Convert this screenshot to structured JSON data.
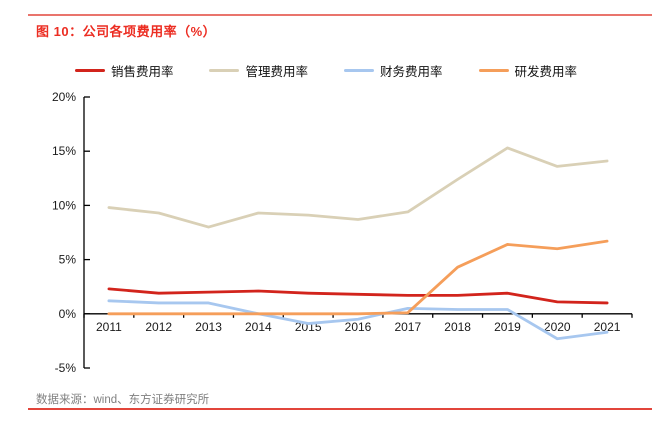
{
  "figure": {
    "title": "图 10：公司各项费用率（%）",
    "source": "数据来源：wind、东方证券研究所"
  },
  "colors": {
    "accent_rule": "#e2453b",
    "title_text": "#ec2d22",
    "axis": "#000000",
    "tick_label": "#1a1a1a",
    "source_text": "#808080"
  },
  "chart_data": {
    "type": "line",
    "title": "公司各项费用率（%）",
    "categories": [
      "2011",
      "2012",
      "2013",
      "2014",
      "2015",
      "2016",
      "2017",
      "2018",
      "2019",
      "2020",
      "2021"
    ],
    "series": [
      {
        "name": "销售费用率",
        "color": "#d2241c",
        "values": [
          2.3,
          1.9,
          2.0,
          2.1,
          1.9,
          1.8,
          1.7,
          1.7,
          1.9,
          1.1,
          1.0
        ]
      },
      {
        "name": "管理费用率",
        "color": "#d9d0b6",
        "values": [
          9.8,
          9.3,
          8.0,
          9.3,
          9.1,
          8.7,
          9.4,
          12.4,
          15.3,
          13.6,
          14.1
        ]
      },
      {
        "name": "财务费用率",
        "color": "#a7c7ef",
        "values": [
          1.2,
          1.0,
          1.0,
          0.0,
          -0.9,
          -0.5,
          0.5,
          0.4,
          0.4,
          -2.3,
          -1.7
        ]
      },
      {
        "name": "研发费用率",
        "color": "#f59e5a",
        "values": [
          0.0,
          0.0,
          0.0,
          0.0,
          0.0,
          0.0,
          0.1,
          4.3,
          6.4,
          6.0,
          6.7
        ]
      }
    ],
    "xlabel": "",
    "ylabel": "",
    "ylim": [
      -5,
      20
    ],
    "ytick_step": 5,
    "ytick_format": "percent",
    "grid": false,
    "legend_position": "top"
  }
}
